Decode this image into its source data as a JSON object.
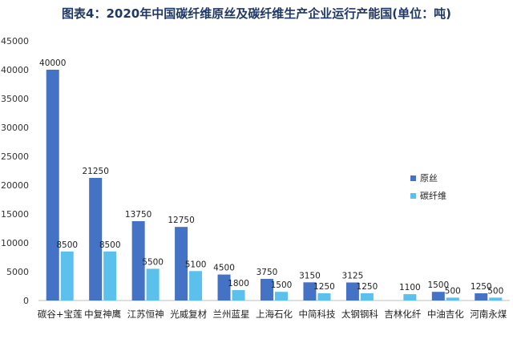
{
  "chart_data": {
    "type": "bar",
    "title": "图表4：2020年中国碳纤维原丝及碳纤维生产企业运行产能国(单位：吨)",
    "categories": [
      "碳谷+宝莲",
      "中复神鹰",
      "江苏恒神",
      "光威复材",
      "兰州蓝星",
      "上海石化",
      "中简科技",
      "太钢钢科",
      "吉林化纤",
      "中油吉化",
      "河南永煤"
    ],
    "series": [
      {
        "name": "原丝",
        "color": "#4472c4",
        "values": [
          40000,
          21250,
          13750,
          12750,
          4500,
          3750,
          3150,
          3125,
          null,
          1500,
          1250
        ]
      },
      {
        "name": "碳纤维",
        "color": "#5bc0eb",
        "values": [
          8500,
          8500,
          5500,
          5100,
          1800,
          1500,
          1250,
          1250,
          1100,
          500,
          500
        ]
      }
    ],
    "data_labels": [
      [
        "40000",
        "21250",
        "13750",
        "12750",
        "4500",
        "3750",
        "3150",
        "3125",
        "",
        "1500",
        "1250"
      ],
      [
        "8500",
        "8500",
        "5500",
        "5100",
        "1800",
        "1500",
        "1250",
        "1250",
        "1100",
        "500",
        "500"
      ]
    ],
    "ylim": [
      0,
      45000
    ],
    "yticks": [
      "0",
      "5000",
      "10000",
      "15000",
      "20000",
      "25000",
      "30000",
      "35000",
      "40000",
      "45000"
    ],
    "legend_position": "right",
    "grid": false
  }
}
